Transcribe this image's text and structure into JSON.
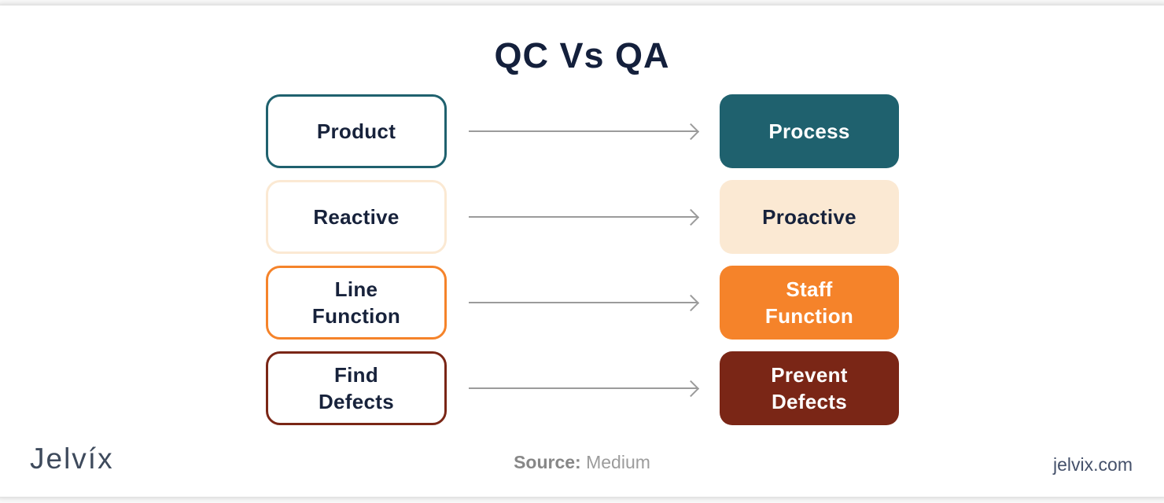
{
  "title": "QC Vs QA",
  "comparison": {
    "rows": [
      {
        "qc": "Product",
        "qa": "Process",
        "accent": "#1f616e",
        "qa_text_color": "#ffffff"
      },
      {
        "qc": "Reactive",
        "qa": "Proactive",
        "accent": "#fbe9d3",
        "qa_text_color": "#17223b"
      },
      {
        "qc": "Line\nFunction",
        "qa": "Staff\nFunction",
        "accent": "#f5832a",
        "qa_text_color": "#ffffff"
      },
      {
        "qc": "Find\nDefects",
        "qa": "Prevent\nDefects",
        "accent": "#7a2616",
        "qa_text_color": "#ffffff"
      }
    ]
  },
  "footer": {
    "brand": "Jelvíx",
    "source_label": "Source:",
    "source_value": "Medium",
    "website": "jelvix.com"
  },
  "colors": {
    "title_text": "#14203c",
    "box_text": "#17223b",
    "arrow": "#9b9b9b",
    "teal": "#1f616e",
    "cream": "#fbe9d3",
    "orange": "#f5832a",
    "dark_red": "#7a2616",
    "brand_text": "#3e4a5c",
    "source_text": "#9c9c9c",
    "website_text": "#44506a"
  }
}
